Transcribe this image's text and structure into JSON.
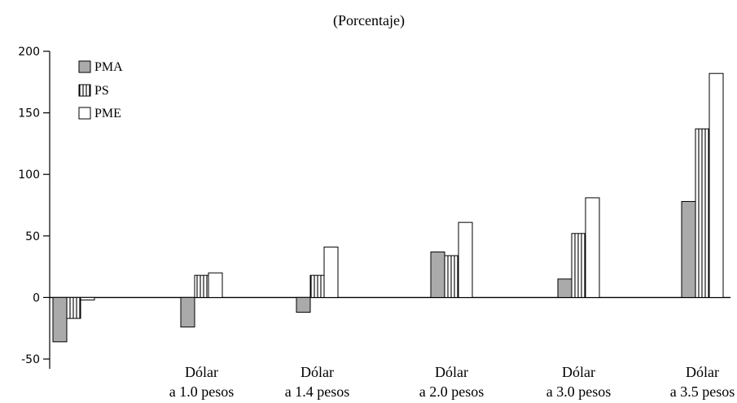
{
  "chart_data": {
    "type": "bar",
    "subtitle": "(Porcentaje)",
    "categories": [
      [
        "",
        ""
      ],
      [
        "Dólar",
        "a 1.0 pesos"
      ],
      [
        "Dólar",
        "a 1.4 pesos"
      ],
      [
        "Dólar",
        "a 2.0 pesos"
      ],
      [
        "Dólar",
        "a 3.0 pesos"
      ],
      [
        "Dólar",
        "a 3.5 pesos"
      ]
    ],
    "series": [
      {
        "name": "PMA",
        "values": [
          -36,
          -24,
          -12,
          37,
          15,
          78
        ],
        "fill": "#aaaaaa",
        "pattern": "solid"
      },
      {
        "name": "PS",
        "values": [
          -17,
          18,
          18,
          34,
          52,
          137
        ],
        "fill": "#ffffff",
        "pattern": "vertical-stripes"
      },
      {
        "name": "PME",
        "values": [
          -2,
          20,
          41,
          61,
          81,
          182
        ],
        "fill": "#ffffff",
        "pattern": "none"
      }
    ],
    "ylim": [
      -50,
      200
    ],
    "yticks": [
      -50,
      0,
      50,
      100,
      150,
      200
    ],
    "legend_position": "top-left",
    "grid": false
  }
}
